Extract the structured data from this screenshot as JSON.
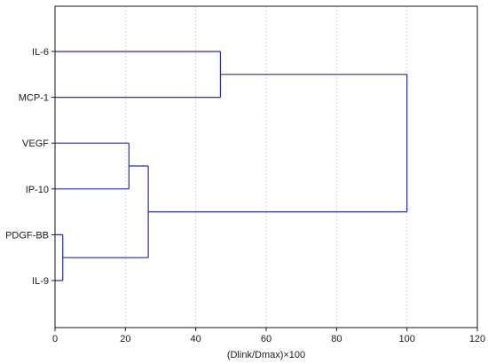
{
  "chart_data": {
    "type": "dendrogram",
    "orientation": "horizontal",
    "xlabel": "(Dlink/Dmax)×100",
    "xlim": [
      0,
      120
    ],
    "xticks": [
      0,
      20,
      40,
      60,
      80,
      100,
      120
    ],
    "grid": "vertical-dotted",
    "leaves": [
      "IL-6",
      "MCP-1",
      "VEGF",
      "IP-10",
      "PDGF-BB",
      "IL-9"
    ],
    "merges": [
      {
        "name": "merge-pdgfbb-il9",
        "children": [
          "PDGF-BB",
          "IL-9"
        ],
        "height": 2.2
      },
      {
        "name": "merge-vegf-ip10",
        "children": [
          "VEGF",
          "IP-10"
        ],
        "height": 21.0
      },
      {
        "name": "merge-vegf-ip10-pdgf",
        "children": [
          "merge-vegf-ip10",
          "merge-pdgfbb-il9"
        ],
        "height": 26.5
      },
      {
        "name": "merge-il6-mcp1",
        "children": [
          "IL-6",
          "MCP-1"
        ],
        "height": 47.0
      },
      {
        "name": "merge-root",
        "children": [
          "merge-il6-mcp1",
          "merge-vegf-ip10-pdgf"
        ],
        "height": 100.0
      }
    ],
    "colors": {
      "link": "#2b2bb8",
      "frame": "#1a1a1a",
      "grid": "#d9d9d9"
    }
  }
}
